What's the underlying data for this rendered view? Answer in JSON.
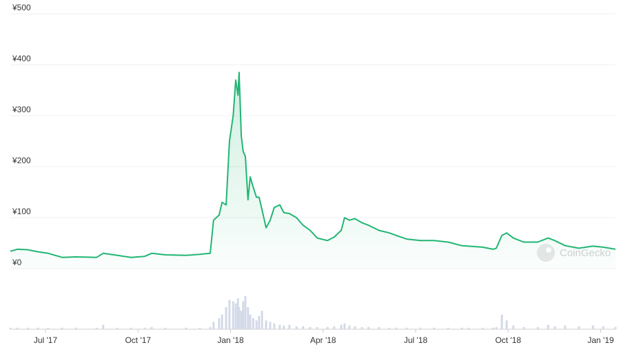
{
  "chart_data": {
    "type": "line",
    "x": [
      2017.405,
      2017.424,
      2017.452,
      2017.48,
      2017.507,
      2017.545,
      2017.582,
      2017.638,
      2017.656,
      2017.694,
      2017.731,
      2017.768,
      2017.787,
      2017.824,
      2017.88,
      2017.917,
      2017.945,
      2017.954,
      2017.969,
      2017.977,
      2017.988,
      2017.997,
      2018.007,
      2018.014,
      2018.02,
      2018.023,
      2018.029,
      2018.034,
      2018.04,
      2018.047,
      2018.053,
      2018.061,
      2018.07,
      2018.077,
      2018.085,
      2018.096,
      2018.107,
      2018.118,
      2018.133,
      2018.144,
      2018.159,
      2018.178,
      2018.196,
      2018.215,
      2018.234,
      2018.262,
      2018.28,
      2018.299,
      2018.308,
      2018.321,
      2018.336,
      2018.355,
      2018.373,
      2018.401,
      2018.429,
      2018.448,
      2018.476,
      2018.513,
      2018.55,
      2018.588,
      2018.625,
      2018.643,
      2018.681,
      2018.709,
      2018.718,
      2018.733,
      2018.746,
      2018.764,
      2018.792,
      2018.83,
      2018.858,
      2018.876,
      2018.904,
      2018.941,
      2018.979,
      2019.007,
      2019.04
    ],
    "series": [
      {
        "color": "#21b573",
        "values": [
          34,
          38,
          37,
          33,
          30,
          22,
          23,
          22,
          30,
          26,
          22,
          24,
          30,
          27,
          26,
          28,
          30,
          95,
          105,
          130,
          125,
          250,
          300,
          370,
          340,
          385,
          260,
          230,
          220,
          135,
          180,
          160,
          140,
          140,
          115,
          80,
          95,
          120,
          125,
          110,
          108,
          100,
          85,
          75,
          60,
          55,
          62,
          75,
          100,
          95,
          98,
          90,
          85,
          75,
          70,
          65,
          58,
          55,
          55,
          52,
          45,
          44,
          42,
          38,
          40,
          65,
          70,
          60,
          52,
          52,
          60,
          55,
          45,
          40,
          44,
          42,
          38
        ]
      },
      {
        "type": "bar",
        "color": "#d3d9e8",
        "values": [
          2,
          2,
          2,
          2,
          2,
          2,
          2,
          2,
          6,
          2,
          2,
          2,
          3,
          2,
          2,
          2,
          3,
          10,
          15,
          20,
          30,
          40,
          38,
          35,
          42,
          30,
          25,
          38,
          45,
          30,
          20,
          15,
          12,
          18,
          25,
          12,
          10,
          8,
          6,
          5,
          6,
          4,
          4,
          3,
          3,
          3,
          4,
          6,
          8,
          5,
          4,
          3,
          3,
          3,
          2,
          2,
          2,
          2,
          2,
          2,
          2,
          2,
          2,
          2,
          3,
          20,
          12,
          5,
          3,
          3,
          6,
          4,
          5,
          4,
          5,
          4,
          3
        ]
      }
    ],
    "xlim": [
      2017.405,
      2019.04
    ],
    "xticks": [
      {
        "value": 2017.5,
        "label": "Jul '17"
      },
      {
        "value": 2017.75,
        "label": "Oct '17"
      },
      {
        "value": 2018.0,
        "label": "Jan '18"
      },
      {
        "value": 2018.25,
        "label": "Apr '18"
      },
      {
        "value": 2018.5,
        "label": "Jul '18"
      },
      {
        "value": 2018.75,
        "label": "Oct '18"
      },
      {
        "value": 2019.0,
        "label": "Jan '19"
      }
    ],
    "ylim": [
      0,
      500
    ],
    "yticks": [
      {
        "value": 0,
        "label": "¥0"
      },
      {
        "value": 100,
        "label": "¥100"
      },
      {
        "value": 200,
        "label": "¥200"
      },
      {
        "value": 300,
        "label": "¥300"
      },
      {
        "value": 400,
        "label": "¥400"
      },
      {
        "value": 500,
        "label": "¥500"
      }
    ],
    "grid": true,
    "watermark": "CoinGecko"
  }
}
